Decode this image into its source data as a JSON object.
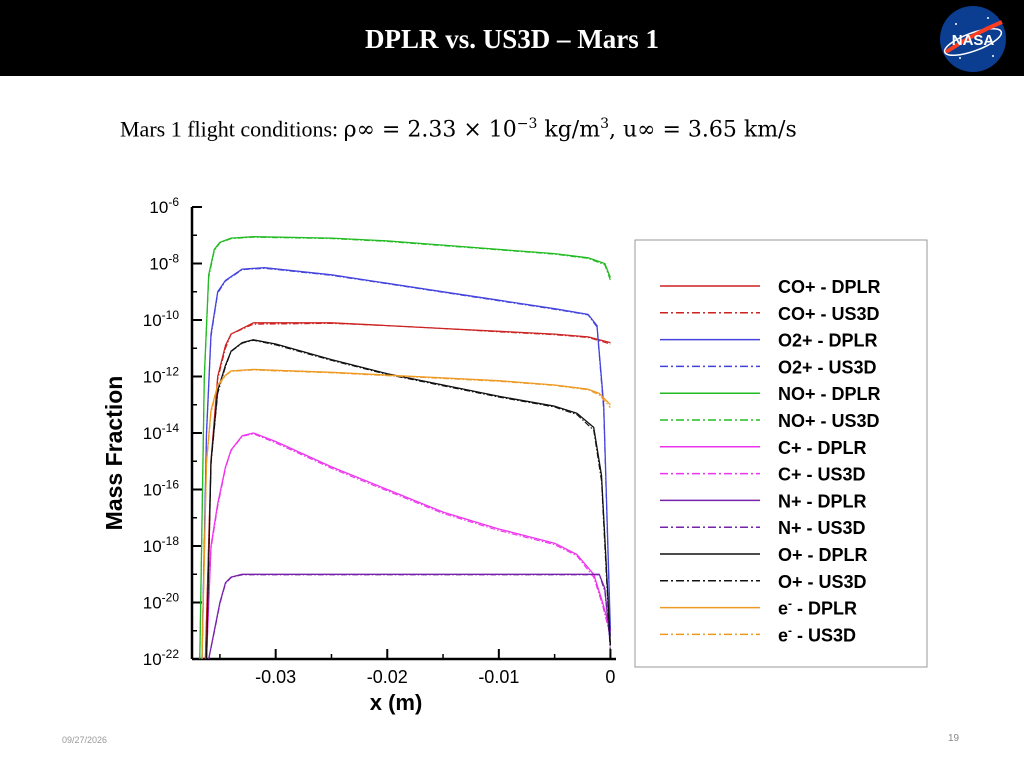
{
  "slide": {
    "title": "DPLR vs. US3D – Mars 1",
    "subtitle_prefix": "Mars 1 flight conditions: ",
    "subtitle_math_1": "ρ∞ = 2.33 × 10",
    "subtitle_exp": "−3",
    "subtitle_math_2": " kg/m",
    "subtitle_exp_2": "3",
    "subtitle_math_3": ", u∞ = 3.65 km/s",
    "date": "09/27/2026",
    "page_number": "19",
    "logo_text": "NASA"
  },
  "chart_data": {
    "type": "line",
    "xlabel": "x (m)",
    "ylabel": "Mass Fraction",
    "xlim": [
      -0.0375,
      0.0005
    ],
    "ylim": [
      -22,
      -6
    ],
    "log_scale_y": true,
    "x_ticks": [
      "-0.03",
      "-0.02",
      "-0.01",
      "0"
    ],
    "x_tick_values": [
      -0.03,
      -0.02,
      -0.01,
      0
    ],
    "y_tick_base": "10",
    "y_tick_exponents": [
      "-6",
      "-8",
      "-10",
      "-12",
      "-14",
      "-16",
      "-18",
      "-20",
      "-22"
    ],
    "y_tick_values": [
      -6,
      -8,
      -10,
      -12,
      -14,
      -16,
      -18,
      -20,
      -22
    ],
    "legend_position": "right",
    "series": [
      {
        "name": "CO+ - DPLR",
        "name_base": "CO+ - DPLR",
        "color": "#cc2222",
        "dash": "solid",
        "x": [
          -0.0363,
          -0.0358,
          -0.0352,
          -0.0345,
          -0.034,
          -0.032,
          -0.025,
          -0.02,
          -0.015,
          -0.01,
          -0.005,
          -0.002,
          0.0
        ],
        "y": [
          -22,
          -15,
          -12,
          -10.9,
          -10.5,
          -10.1,
          -10.1,
          -10.2,
          -10.3,
          -10.4,
          -10.5,
          -10.6,
          -10.8
        ]
      },
      {
        "name": "CO+ - US3D",
        "name_base": "CO+ - US3D",
        "color": "#cc2222",
        "dash": "dashdot",
        "x": [
          -0.0363,
          -0.0358,
          -0.0352,
          -0.0345,
          -0.034,
          -0.032,
          -0.025,
          -0.02,
          -0.015,
          -0.01,
          -0.005,
          -0.002,
          0.0
        ],
        "y": [
          -22,
          -15.1,
          -12.1,
          -11.0,
          -10.5,
          -10.15,
          -10.12,
          -10.2,
          -10.3,
          -10.42,
          -10.52,
          -10.62,
          -10.85
        ]
      },
      {
        "name": "O2+ - DPLR",
        "name_base": "O2+ - DPLR",
        "color": "#4444dd",
        "dash": "solid",
        "x": [
          -0.0366,
          -0.0362,
          -0.0358,
          -0.0352,
          -0.0345,
          -0.033,
          -0.031,
          -0.025,
          -0.02,
          -0.015,
          -0.01,
          -0.005,
          -0.002,
          -0.0012,
          -0.0006,
          0.0
        ],
        "y": [
          -22,
          -14,
          -10.5,
          -9.0,
          -8.6,
          -8.2,
          -8.15,
          -8.4,
          -8.7,
          -9.0,
          -9.3,
          -9.6,
          -9.8,
          -10.2,
          -13,
          -21
        ]
      },
      {
        "name": "O2+ - US3D",
        "name_base": "O2+ - US3D",
        "color": "#4444dd",
        "dash": "dashdot",
        "x": [
          -0.0366,
          -0.0362,
          -0.0358,
          -0.0352,
          -0.0345,
          -0.033,
          -0.031,
          -0.025,
          -0.02,
          -0.015,
          -0.01,
          -0.005,
          -0.002,
          -0.0012,
          -0.0006,
          0.0
        ],
        "y": [
          -22,
          -14.1,
          -10.6,
          -9.05,
          -8.62,
          -8.22,
          -8.17,
          -8.42,
          -8.72,
          -9.02,
          -9.32,
          -9.62,
          -9.82,
          -10.25,
          -13.2,
          -21.2
        ]
      },
      {
        "name": "NO+ - DPLR",
        "name_base": "NO+ - DPLR",
        "color": "#22bb22",
        "dash": "solid",
        "x": [
          -0.0368,
          -0.0364,
          -0.036,
          -0.0355,
          -0.035,
          -0.034,
          -0.032,
          -0.025,
          -0.02,
          -0.015,
          -0.01,
          -0.005,
          -0.002,
          -0.0005,
          0.0
        ],
        "y": [
          -22,
          -12,
          -8.4,
          -7.5,
          -7.25,
          -7.1,
          -7.05,
          -7.1,
          -7.2,
          -7.35,
          -7.5,
          -7.65,
          -7.8,
          -8.0,
          -8.5
        ]
      },
      {
        "name": "NO+ - US3D",
        "name_base": "NO+ - US3D",
        "color": "#22bb22",
        "dash": "dashdot",
        "x": [
          -0.0368,
          -0.0364,
          -0.036,
          -0.0355,
          -0.035,
          -0.034,
          -0.032,
          -0.025,
          -0.02,
          -0.015,
          -0.01,
          -0.005,
          -0.002,
          -0.0005,
          0.0
        ],
        "y": [
          -22,
          -12.1,
          -8.5,
          -7.55,
          -7.27,
          -7.12,
          -7.07,
          -7.12,
          -7.22,
          -7.37,
          -7.52,
          -7.67,
          -7.82,
          -8.05,
          -8.6
        ]
      },
      {
        "name": "C+ - DPLR",
        "name_base": "C+ - DPLR",
        "color": "#ee33ee",
        "dash": "solid",
        "x": [
          -0.0362,
          -0.0358,
          -0.0352,
          -0.0345,
          -0.034,
          -0.033,
          -0.032,
          -0.03,
          -0.025,
          -0.02,
          -0.015,
          -0.01,
          -0.005,
          -0.003,
          -0.0015,
          -0.0007,
          0.0
        ],
        "y": [
          -22,
          -18,
          -16.5,
          -15.2,
          -14.6,
          -14.1,
          -14.0,
          -14.3,
          -15.2,
          -16.0,
          -16.8,
          -17.4,
          -17.9,
          -18.3,
          -19.0,
          -20.0,
          -21.0
        ]
      },
      {
        "name": "C+ - US3D",
        "name_base": "C+ - US3D",
        "color": "#ee33ee",
        "dash": "dashdot",
        "x": [
          -0.0362,
          -0.0358,
          -0.0352,
          -0.0345,
          -0.034,
          -0.033,
          -0.032,
          -0.03,
          -0.025,
          -0.02,
          -0.015,
          -0.01,
          -0.005,
          -0.003,
          -0.0015,
          -0.0007,
          0.0
        ],
        "y": [
          -22,
          -18.1,
          -16.6,
          -15.25,
          -14.62,
          -14.12,
          -14.03,
          -14.35,
          -15.25,
          -16.05,
          -16.85,
          -17.45,
          -17.95,
          -18.35,
          -19.1,
          -20.1,
          -21.2
        ]
      },
      {
        "name": "N+ - DPLR",
        "name_base": "N+ - DPLR",
        "color": "#7722aa",
        "dash": "solid",
        "x": [
          -0.036,
          -0.0355,
          -0.035,
          -0.0345,
          -0.034,
          -0.033,
          -0.02,
          -0.01,
          -0.003,
          -0.001,
          -0.0005,
          0.0
        ],
        "y": [
          -22,
          -21,
          -20,
          -19.3,
          -19.1,
          -19.0,
          -19.0,
          -19.0,
          -19.0,
          -19.0,
          -19.5,
          -21.5
        ]
      },
      {
        "name": "N+ - US3D",
        "name_base": "N+ - US3D",
        "color": "#7722aa",
        "dash": "dashdot",
        "x": [
          -0.036,
          -0.0355,
          -0.035,
          -0.0345,
          -0.034,
          -0.033,
          -0.02,
          -0.01,
          -0.003,
          -0.001,
          -0.0005,
          0.0
        ],
        "y": [
          -22,
          -21.05,
          -20.05,
          -19.33,
          -19.12,
          -19.02,
          -19.02,
          -19.02,
          -19.02,
          -19.02,
          -19.6,
          -21.6
        ]
      },
      {
        "name": "O+ - DPLR",
        "name_base": "O+ - DPLR",
        "color": "#111111",
        "dash": "solid",
        "x": [
          -0.0362,
          -0.0358,
          -0.0352,
          -0.0345,
          -0.034,
          -0.033,
          -0.032,
          -0.03,
          -0.025,
          -0.02,
          -0.015,
          -0.01,
          -0.005,
          -0.003,
          -0.0015,
          -0.0008,
          -0.0004,
          0.0
        ],
        "y": [
          -22,
          -15,
          -12.5,
          -11.6,
          -11.1,
          -10.8,
          -10.7,
          -10.85,
          -11.4,
          -11.9,
          -12.3,
          -12.7,
          -13.05,
          -13.3,
          -13.8,
          -15.5,
          -18.5,
          -21.5
        ]
      },
      {
        "name": "O+ - US3D",
        "name_base": "O+ - US3D",
        "color": "#111111",
        "dash": "dashdot",
        "x": [
          -0.0362,
          -0.0358,
          -0.0352,
          -0.0345,
          -0.034,
          -0.033,
          -0.032,
          -0.03,
          -0.025,
          -0.02,
          -0.015,
          -0.01,
          -0.005,
          -0.003,
          -0.0015,
          -0.0008,
          -0.0004,
          0.0
        ],
        "y": [
          -22,
          -15.1,
          -12.6,
          -11.65,
          -11.12,
          -10.82,
          -10.72,
          -10.88,
          -11.43,
          -11.93,
          -12.33,
          -12.73,
          -13.08,
          -13.35,
          -13.9,
          -15.7,
          -18.8,
          -21.8
        ]
      },
      {
        "name": "e- - DPLR",
        "name_base": "e",
        "name_sup": "-",
        "name_rest": " - DPLR",
        "color": "#ee9922",
        "dash": "solid",
        "x": [
          -0.0366,
          -0.0362,
          -0.0358,
          -0.0352,
          -0.0345,
          -0.034,
          -0.032,
          -0.03,
          -0.025,
          -0.02,
          -0.015,
          -0.01,
          -0.005,
          -0.002,
          -0.001,
          0.0
        ],
        "y": [
          -22,
          -15,
          -13.2,
          -12.3,
          -11.95,
          -11.8,
          -11.75,
          -11.78,
          -11.85,
          -11.95,
          -12.05,
          -12.15,
          -12.3,
          -12.45,
          -12.6,
          -13.0
        ]
      },
      {
        "name": "e- - US3D",
        "name_base": "e",
        "name_sup": "-",
        "name_rest": " - US3D",
        "color": "#ee9922",
        "dash": "dashdot",
        "x": [
          -0.0366,
          -0.0362,
          -0.0358,
          -0.0352,
          -0.0345,
          -0.034,
          -0.032,
          -0.03,
          -0.025,
          -0.02,
          -0.015,
          -0.01,
          -0.005,
          -0.002,
          -0.001,
          0.0
        ],
        "y": [
          -22,
          -15.1,
          -13.3,
          -12.35,
          -11.97,
          -11.82,
          -11.77,
          -11.8,
          -11.87,
          -11.97,
          -12.07,
          -12.17,
          -12.32,
          -12.47,
          -12.65,
          -13.1
        ]
      }
    ]
  }
}
